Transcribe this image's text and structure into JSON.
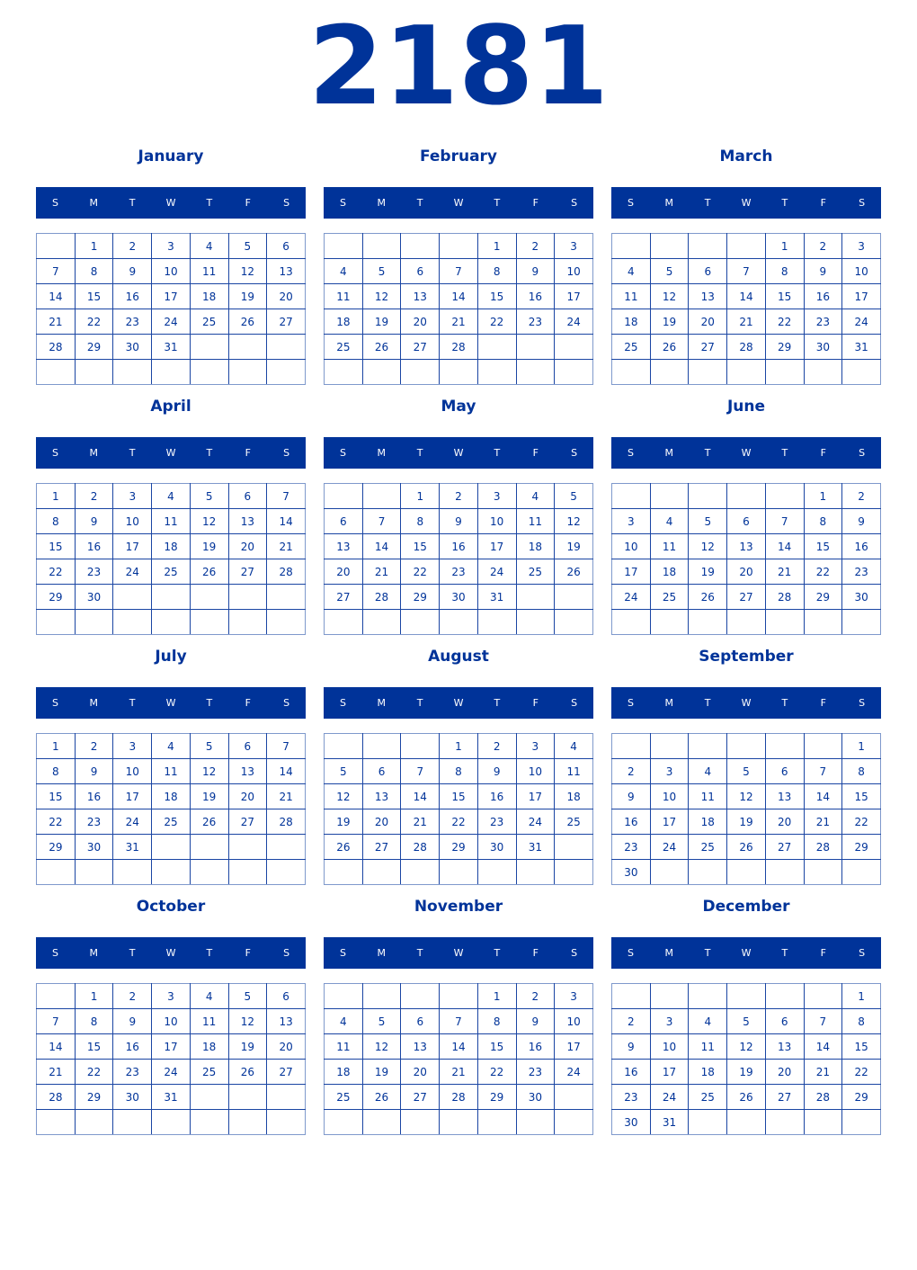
{
  "year": "2181",
  "weekdays": [
    "S",
    "M",
    "T",
    "W",
    "T",
    "F",
    "S"
  ],
  "colors": {
    "primary": "#003399",
    "header_text": "#ffffff"
  },
  "months": [
    {
      "name": "January",
      "weeks": [
        [
          "",
          1,
          2,
          3,
          4,
          5,
          6
        ],
        [
          7,
          8,
          9,
          10,
          11,
          12,
          13
        ],
        [
          14,
          15,
          16,
          17,
          18,
          19,
          20
        ],
        [
          21,
          22,
          23,
          24,
          25,
          26,
          27
        ],
        [
          28,
          29,
          30,
          31,
          "",
          "",
          ""
        ],
        [
          "",
          "",
          "",
          "",
          "",
          "",
          ""
        ]
      ]
    },
    {
      "name": "February",
      "weeks": [
        [
          "",
          "",
          "",
          "",
          1,
          2,
          3
        ],
        [
          4,
          5,
          6,
          7,
          8,
          9,
          10
        ],
        [
          11,
          12,
          13,
          14,
          15,
          16,
          17
        ],
        [
          18,
          19,
          20,
          21,
          22,
          23,
          24
        ],
        [
          25,
          26,
          27,
          28,
          "",
          "",
          ""
        ],
        [
          "",
          "",
          "",
          "",
          "",
          "",
          ""
        ]
      ]
    },
    {
      "name": "March",
      "weeks": [
        [
          "",
          "",
          "",
          "",
          1,
          2,
          3
        ],
        [
          4,
          5,
          6,
          7,
          8,
          9,
          10
        ],
        [
          11,
          12,
          13,
          14,
          15,
          16,
          17
        ],
        [
          18,
          19,
          20,
          21,
          22,
          23,
          24
        ],
        [
          25,
          26,
          27,
          28,
          29,
          30,
          31
        ],
        [
          "",
          "",
          "",
          "",
          "",
          "",
          ""
        ]
      ]
    },
    {
      "name": "April",
      "weeks": [
        [
          1,
          2,
          3,
          4,
          5,
          6,
          7
        ],
        [
          8,
          9,
          10,
          11,
          12,
          13,
          14
        ],
        [
          15,
          16,
          17,
          18,
          19,
          20,
          21
        ],
        [
          22,
          23,
          24,
          25,
          26,
          27,
          28
        ],
        [
          29,
          30,
          "",
          "",
          "",
          "",
          ""
        ],
        [
          "",
          "",
          "",
          "",
          "",
          "",
          ""
        ]
      ]
    },
    {
      "name": "May",
      "weeks": [
        [
          "",
          "",
          1,
          2,
          3,
          4,
          5
        ],
        [
          6,
          7,
          8,
          9,
          10,
          11,
          12
        ],
        [
          13,
          14,
          15,
          16,
          17,
          18,
          19
        ],
        [
          20,
          21,
          22,
          23,
          24,
          25,
          26
        ],
        [
          27,
          28,
          29,
          30,
          31,
          "",
          ""
        ],
        [
          "",
          "",
          "",
          "",
          "",
          "",
          ""
        ]
      ]
    },
    {
      "name": "June",
      "weeks": [
        [
          "",
          "",
          "",
          "",
          "",
          1,
          2
        ],
        [
          3,
          4,
          5,
          6,
          7,
          8,
          9
        ],
        [
          10,
          11,
          12,
          13,
          14,
          15,
          16
        ],
        [
          17,
          18,
          19,
          20,
          21,
          22,
          23
        ],
        [
          24,
          25,
          26,
          27,
          28,
          29,
          30
        ],
        [
          "",
          "",
          "",
          "",
          "",
          "",
          ""
        ]
      ]
    },
    {
      "name": "July",
      "weeks": [
        [
          1,
          2,
          3,
          4,
          5,
          6,
          7
        ],
        [
          8,
          9,
          10,
          11,
          12,
          13,
          14
        ],
        [
          15,
          16,
          17,
          18,
          19,
          20,
          21
        ],
        [
          22,
          23,
          24,
          25,
          26,
          27,
          28
        ],
        [
          29,
          30,
          31,
          "",
          "",
          "",
          ""
        ],
        [
          "",
          "",
          "",
          "",
          "",
          "",
          ""
        ]
      ]
    },
    {
      "name": "August",
      "weeks": [
        [
          "",
          "",
          "",
          1,
          2,
          3,
          4
        ],
        [
          5,
          6,
          7,
          8,
          9,
          10,
          11
        ],
        [
          12,
          13,
          14,
          15,
          16,
          17,
          18
        ],
        [
          19,
          20,
          21,
          22,
          23,
          24,
          25
        ],
        [
          26,
          27,
          28,
          29,
          30,
          31,
          ""
        ],
        [
          "",
          "",
          "",
          "",
          "",
          "",
          ""
        ]
      ]
    },
    {
      "name": "September",
      "weeks": [
        [
          "",
          "",
          "",
          "",
          "",
          "",
          1
        ],
        [
          2,
          3,
          4,
          5,
          6,
          7,
          8
        ],
        [
          9,
          10,
          11,
          12,
          13,
          14,
          15
        ],
        [
          16,
          17,
          18,
          19,
          20,
          21,
          22
        ],
        [
          23,
          24,
          25,
          26,
          27,
          28,
          29
        ],
        [
          30,
          "",
          "",
          "",
          "",
          "",
          ""
        ]
      ]
    },
    {
      "name": "October",
      "weeks": [
        [
          "",
          1,
          2,
          3,
          4,
          5,
          6
        ],
        [
          7,
          8,
          9,
          10,
          11,
          12,
          13
        ],
        [
          14,
          15,
          16,
          17,
          18,
          19,
          20
        ],
        [
          21,
          22,
          23,
          24,
          25,
          26,
          27
        ],
        [
          28,
          29,
          30,
          31,
          "",
          "",
          ""
        ],
        [
          "",
          "",
          "",
          "",
          "",
          "",
          ""
        ]
      ]
    },
    {
      "name": "November",
      "weeks": [
        [
          "",
          "",
          "",
          "",
          1,
          2,
          3
        ],
        [
          4,
          5,
          6,
          7,
          8,
          9,
          10
        ],
        [
          11,
          12,
          13,
          14,
          15,
          16,
          17
        ],
        [
          18,
          19,
          20,
          21,
          22,
          23,
          24
        ],
        [
          25,
          26,
          27,
          28,
          29,
          30,
          ""
        ],
        [
          "",
          "",
          "",
          "",
          "",
          "",
          ""
        ]
      ]
    },
    {
      "name": "December",
      "weeks": [
        [
          "",
          "",
          "",
          "",
          "",
          "",
          1
        ],
        [
          2,
          3,
          4,
          5,
          6,
          7,
          8
        ],
        [
          9,
          10,
          11,
          12,
          13,
          14,
          15
        ],
        [
          16,
          17,
          18,
          19,
          20,
          21,
          22
        ],
        [
          23,
          24,
          25,
          26,
          27,
          28,
          29
        ],
        [
          30,
          31,
          "",
          "",
          "",
          "",
          ""
        ]
      ]
    }
  ]
}
